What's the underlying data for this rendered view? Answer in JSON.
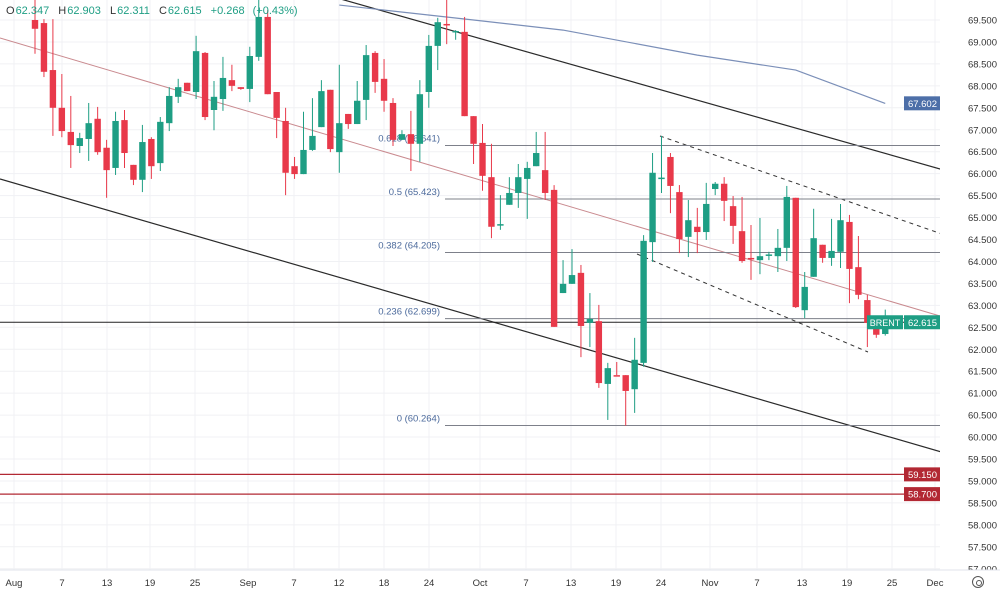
{
  "header": {
    "open_label": "O",
    "open": "62.347",
    "high_label": "H",
    "high": "62.903",
    "low_label": "L",
    "low": "62.311",
    "close_label": "C",
    "close": "62.615",
    "change": "+0.268",
    "change_pct": "(+0.43%)"
  },
  "chart_data": {
    "type": "candlestick",
    "symbol": "BRENT",
    "last_price": "62.615",
    "ylim": [
      56.9,
      70.0
    ],
    "grid": true,
    "colors": {
      "up": "#1e9e84",
      "down": "#e8394a",
      "ma": "#7b8fb8",
      "fib": "#7d808a",
      "level": "#b22833",
      "price_line": "#222222",
      "fib_text": "#4c6a9c"
    },
    "y_ticks": [
      "69.500",
      "69.000",
      "68.500",
      "68.000",
      "67.500",
      "67.000",
      "66.500",
      "66.000",
      "65.500",
      "65.000",
      "64.500",
      "64.000",
      "63.500",
      "63.000",
      "62.500",
      "62.000",
      "61.500",
      "61.000",
      "60.500",
      "60.000",
      "59.500",
      "59.000",
      "58.500",
      "58.000",
      "57.500",
      "57.000"
    ],
    "x_ticks": [
      "Aug",
      "7",
      "13",
      "19",
      "25",
      "Sep",
      "7",
      "12",
      "18",
      "24",
      "Oct",
      "7",
      "13",
      "19",
      "24",
      "Nov",
      "7",
      "13",
      "19",
      "25",
      "Dec"
    ],
    "candles": [
      [
        69.5,
        69.96,
        68.73,
        69.3
      ],
      [
        69.43,
        69.52,
        68.2,
        68.32
      ],
      [
        68.36,
        69.52,
        66.86,
        67.5
      ],
      [
        67.5,
        68.27,
        66.83,
        66.97
      ],
      [
        66.95,
        67.77,
        66.13,
        66.65
      ],
      [
        66.63,
        66.93,
        66.47,
        66.81
      ],
      [
        66.79,
        67.61,
        66.29,
        67.15
      ],
      [
        67.25,
        67.52,
        66.43,
        66.49
      ],
      [
        66.59,
        66.77,
        65.45,
        66.08
      ],
      [
        66.13,
        67.41,
        65.97,
        67.2
      ],
      [
        67.22,
        67.45,
        66.13,
        66.47
      ],
      [
        66.2,
        66.2,
        65.74,
        65.86
      ],
      [
        65.86,
        67.11,
        65.58,
        66.72
      ],
      [
        66.79,
        66.83,
        65.88,
        66.17
      ],
      [
        66.24,
        67.29,
        66.06,
        67.18
      ],
      [
        67.15,
        67.97,
        66.97,
        67.77
      ],
      [
        67.75,
        68.16,
        67.61,
        67.97
      ],
      [
        68.07,
        68.07,
        67.88,
        67.88
      ],
      [
        67.86,
        69.14,
        67.7,
        68.79
      ],
      [
        68.75,
        68.77,
        67.22,
        67.29
      ],
      [
        67.45,
        68.11,
        66.99,
        67.75
      ],
      [
        67.7,
        68.66,
        67.43,
        68.18
      ],
      [
        68.13,
        68.48,
        67.88,
        68.0
      ],
      [
        67.97,
        67.97,
        67.91,
        67.93
      ],
      [
        67.93,
        68.89,
        67.63,
        68.68
      ],
      [
        68.66,
        69.96,
        68.57,
        69.57
      ],
      [
        69.57,
        69.73,
        67.81,
        67.81
      ],
      [
        67.86,
        67.86,
        66.81,
        67.27
      ],
      [
        67.2,
        67.5,
        65.51,
        66.02
      ],
      [
        66.17,
        66.38,
        65.88,
        65.99
      ],
      [
        65.99,
        67.41,
        65.99,
        66.54
      ],
      [
        66.54,
        67.72,
        66.52,
        66.86
      ],
      [
        67.06,
        68.13,
        67.06,
        67.88
      ],
      [
        67.91,
        67.91,
        66.49,
        66.56
      ],
      [
        66.49,
        68.48,
        66.02,
        67.15
      ],
      [
        67.36,
        67.36,
        67.02,
        67.13
      ],
      [
        67.13,
        68.11,
        67.13,
        67.66
      ],
      [
        67.68,
        68.93,
        67.22,
        68.7
      ],
      [
        68.75,
        68.79,
        67.84,
        68.09
      ],
      [
        68.16,
        68.61,
        67.41,
        67.66
      ],
      [
        67.61,
        67.72,
        66.63,
        66.77
      ],
      [
        66.77,
        66.99,
        66.77,
        66.9
      ],
      [
        66.9,
        67.43,
        66.06,
        66.68
      ],
      [
        66.68,
        68.13,
        66.27,
        67.81
      ],
      [
        67.86,
        69.16,
        67.5,
        68.91
      ],
      [
        68.91,
        69.55,
        68.36,
        69.45
      ],
      [
        69.41,
        69.96,
        68.95,
        69.39
      ],
      [
        69.23,
        69.27,
        69.05,
        69.25
      ],
      [
        69.23,
        69.57,
        67.31,
        67.31
      ],
      [
        67.31,
        67.31,
        66.22,
        66.68
      ],
      [
        66.7,
        67.13,
        65.61,
        65.95
      ],
      [
        65.92,
        66.68,
        64.53,
        64.79
      ],
      [
        64.83,
        65.51,
        64.72,
        64.85
      ],
      [
        65.29,
        65.92,
        65.29,
        65.56
      ],
      [
        65.56,
        66.22,
        65.22,
        65.92
      ],
      [
        65.88,
        66.27,
        64.97,
        66.13
      ],
      [
        66.17,
        66.95,
        66.17,
        66.47
      ],
      [
        66.08,
        66.95,
        65.4,
        65.56
      ],
      [
        65.63,
        65.74,
        62.51,
        62.51
      ],
      [
        63.28,
        64.03,
        63.28,
        63.49
      ],
      [
        63.49,
        64.28,
        63.49,
        63.69
      ],
      [
        63.74,
        63.92,
        61.82,
        62.53
      ],
      [
        62.6,
        63.28,
        62.05,
        62.69
      ],
      [
        62.64,
        63.01,
        61.12,
        61.23
      ],
      [
        61.21,
        61.69,
        60.39,
        61.57
      ],
      [
        61.41,
        61.71,
        61.41,
        61.4
      ],
      [
        61.41,
        61.41,
        60.26,
        61.05
      ],
      [
        61.09,
        62.26,
        60.55,
        61.76
      ],
      [
        61.69,
        64.6,
        61.6,
        64.47
      ],
      [
        64.44,
        66.47,
        63.99,
        66.02
      ],
      [
        65.9,
        66.86,
        65.56,
        65.91
      ],
      [
        66.38,
        66.47,
        65.1,
        65.72
      ],
      [
        65.58,
        65.74,
        64.19,
        64.51
      ],
      [
        64.56,
        65.4,
        64.1,
        64.94
      ],
      [
        64.79,
        65.22,
        64.19,
        64.67
      ],
      [
        64.67,
        65.79,
        64.49,
        65.31
      ],
      [
        65.65,
        65.81,
        65.51,
        65.77
      ],
      [
        65.77,
        65.92,
        64.92,
        65.38
      ],
      [
        65.26,
        65.49,
        64.4,
        64.81
      ],
      [
        64.69,
        65.47,
        63.97,
        64.01
      ],
      [
        64.08,
        64.83,
        63.58,
        64.07
      ],
      [
        64.03,
        64.99,
        63.71,
        64.12
      ],
      [
        64.15,
        64.22,
        64.03,
        64.16
      ],
      [
        64.12,
        64.74,
        63.76,
        64.31
      ],
      [
        64.31,
        65.72,
        64.01,
        65.47
      ],
      [
        65.45,
        65.45,
        62.94,
        62.96
      ],
      [
        62.89,
        63.76,
        62.71,
        63.42
      ],
      [
        63.65,
        65.2,
        63.65,
        64.53
      ],
      [
        64.38,
        64.38,
        63.97,
        64.08
      ],
      [
        64.08,
        64.97,
        63.9,
        64.24
      ],
      [
        64.22,
        65.31,
        63.85,
        64.94
      ],
      [
        64.9,
        65.06,
        63.05,
        63.83
      ],
      [
        63.87,
        64.58,
        63.14,
        63.24
      ],
      [
        63.12,
        63.24,
        62.05,
        62.6
      ],
      [
        62.67,
        62.67,
        62.26,
        62.33
      ],
      [
        62.347,
        62.903,
        62.311,
        62.615
      ]
    ],
    "moving_average": {
      "last_label": "67.602",
      "points": [
        [
          34,
          69.84
        ],
        [
          49,
          69.5
        ],
        [
          59,
          69.27
        ],
        [
          74,
          68.7
        ],
        [
          85,
          68.36
        ],
        [
          95,
          67.6
        ]
      ]
    },
    "fib_levels": [
      {
        "ratio": "0.618",
        "price": 66.641,
        "label": "0.618 (66.641)"
      },
      {
        "ratio": "0.5",
        "price": 65.423,
        "label": "0.5 (65.423)"
      },
      {
        "ratio": "0.382",
        "price": 64.205,
        "label": "0.382 (64.205)"
      },
      {
        "ratio": "0.236",
        "price": 62.699,
        "label": "0.236 (62.699)"
      },
      {
        "ratio": "0",
        "price": 60.264,
        "label": "0 (60.264)"
      }
    ],
    "horizontal_levels": [
      {
        "price": 59.15,
        "label": "59.150"
      },
      {
        "price": 58.7,
        "label": "58.700"
      }
    ]
  }
}
